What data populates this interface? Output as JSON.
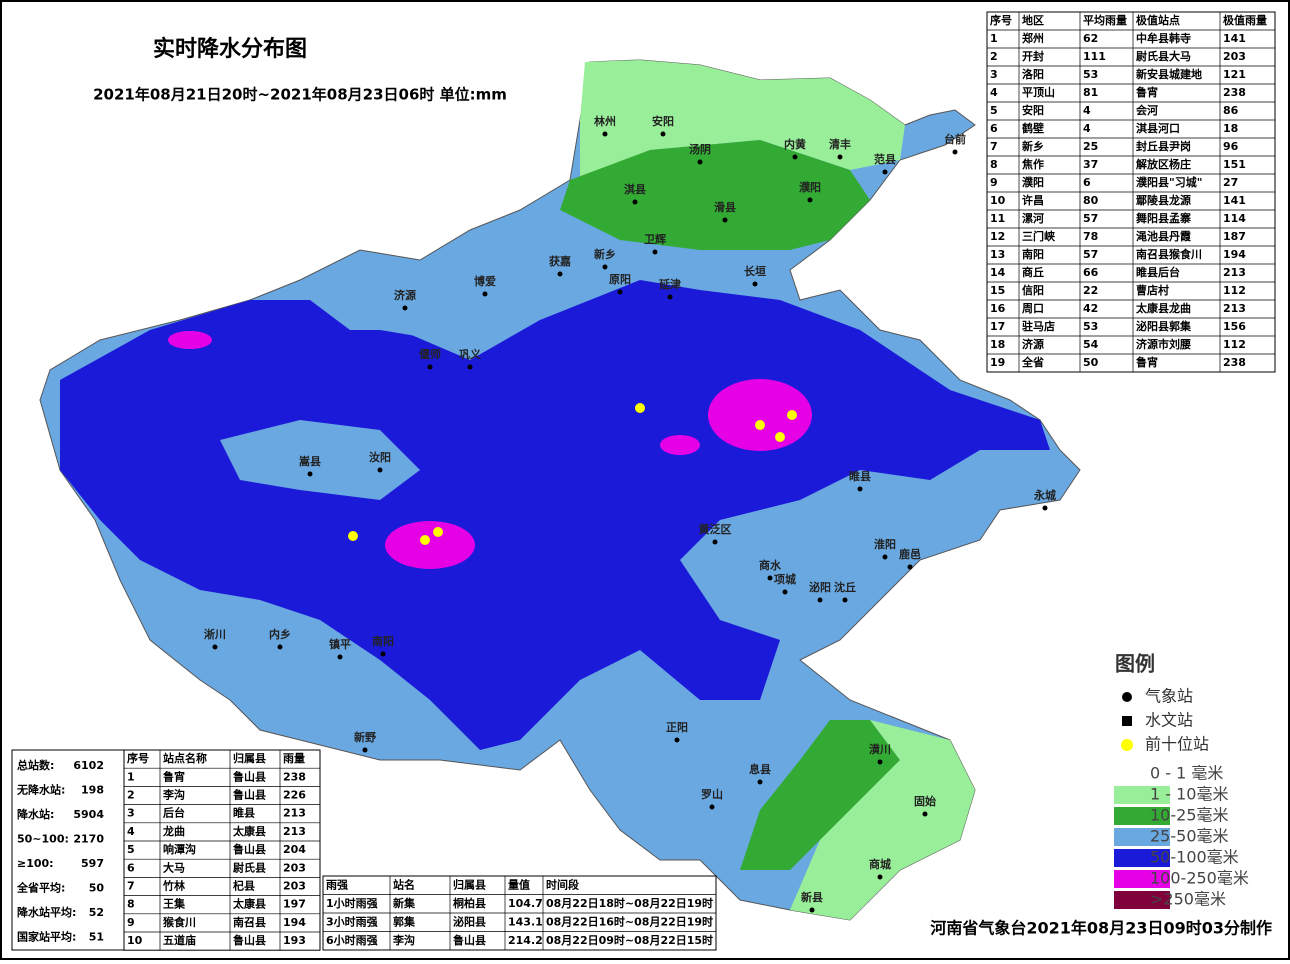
{
  "header": {
    "title": "实时降水分布图",
    "subtitle": "2021年08月21日20时~2021年08月23日06时 单位:mm"
  },
  "region_table": {
    "columns": [
      "序号",
      "地区",
      "平均雨量",
      "极值站点",
      "极值雨量"
    ],
    "rows": [
      [
        1,
        "郑州",
        62,
        "中牟县韩寺",
        141
      ],
      [
        2,
        "开封",
        111,
        "尉氏县大马",
        203
      ],
      [
        3,
        "洛阳",
        53,
        "新安县城建地",
        121
      ],
      [
        4,
        "平顶山",
        81,
        "鲁宵",
        238
      ],
      [
        5,
        "安阳",
        4,
        "会河",
        86
      ],
      [
        6,
        "鹤壁",
        4,
        "淇县河口",
        18
      ],
      [
        7,
        "新乡",
        25,
        "封丘县尹岗",
        96
      ],
      [
        8,
        "焦作",
        37,
        "解放区杨庄",
        151
      ],
      [
        9,
        "濮阳",
        6,
        "濮阳县\"习城\"",
        27
      ],
      [
        10,
        "许昌",
        80,
        "鄢陵县龙源",
        141
      ],
      [
        11,
        "漯河",
        57,
        "舞阳县孟寨",
        114
      ],
      [
        12,
        "三门峡",
        78,
        "渑池县丹霞",
        187
      ],
      [
        13,
        "南阳",
        57,
        "南召县猴食川",
        194
      ],
      [
        14,
        "商丘",
        66,
        "睢县后台",
        213
      ],
      [
        15,
        "信阳",
        22,
        "曹店村",
        112
      ],
      [
        16,
        "周口",
        42,
        "太康县龙曲",
        213
      ],
      [
        17,
        "驻马店",
        53,
        "泌阳县郭集",
        156
      ],
      [
        18,
        "济源",
        54,
        "济源市刘腰",
        112
      ],
      [
        19,
        "全省",
        50,
        "鲁宵",
        238
      ]
    ]
  },
  "stats": [
    {
      "label": "总站数:",
      "value": 6102
    },
    {
      "label": "无降水站:",
      "value": 198
    },
    {
      "label": "降水站:",
      "value": 5904
    },
    {
      "label": "50~100:",
      "value": 2170
    },
    {
      "label": "≥100:",
      "value": 597
    },
    {
      "label": "全省平均:",
      "value": 50
    },
    {
      "label": "降水站平均:",
      "value": 52
    },
    {
      "label": "国家站平均:",
      "value": 51
    }
  ],
  "station_table": {
    "columns": [
      "序号",
      "站点名称",
      "归属县",
      "雨量"
    ],
    "rows": [
      [
        1,
        "鲁宵",
        "鲁山县",
        238
      ],
      [
        2,
        "李沟",
        "鲁山县",
        226
      ],
      [
        3,
        "后台",
        "睢县",
        213
      ],
      [
        4,
        "龙曲",
        "太康县",
        213
      ],
      [
        5,
        "响潭沟",
        "鲁山县",
        204
      ],
      [
        6,
        "大马",
        "尉氏县",
        203
      ],
      [
        7,
        "竹林",
        "杞县",
        203
      ],
      [
        8,
        "王集",
        "太康县",
        197
      ],
      [
        9,
        "猴食川",
        "南召县",
        194
      ],
      [
        10,
        "五道庙",
        "鲁山县",
        193
      ]
    ]
  },
  "intensity_table": {
    "columns": [
      "雨强",
      "站名",
      "归属县",
      "量值",
      "时间段"
    ],
    "rows": [
      [
        "1小时雨强",
        "新集",
        "桐柏县",
        104.7,
        "08月22日18时~08月22日19时"
      ],
      [
        "3小时雨强",
        "郭集",
        "泌阳县",
        143.1,
        "08月22日16时~08月22日19时"
      ],
      [
        "6小时雨强",
        "李沟",
        "鲁山县",
        214.2,
        "08月22日09时~08月22日15时"
      ]
    ]
  },
  "legend": {
    "title": "图例",
    "symbols": [
      "气象站",
      "水文站",
      "前十位站"
    ],
    "classes": [
      {
        "label": "0 - 1 毫米",
        "color": "#ffffff"
      },
      {
        "label": "1 - 10毫米",
        "color": "#99ee99"
      },
      {
        "label": "10-25毫米",
        "color": "#33aa33"
      },
      {
        "label": "25-50毫米",
        "color": "#6aa8e2"
      },
      {
        "label": "50-100毫米",
        "color": "#1a1ad8"
      },
      {
        "label": "100-250毫米",
        "color": "#e600e6"
      },
      {
        "label": ">250毫米",
        "color": "#80003c"
      }
    ]
  },
  "map_labels": [
    "林州",
    "安阳",
    "汤阴",
    "内黄",
    "清丰",
    "濮阳",
    "范县",
    "台前",
    "淇县",
    "滑县",
    "卫辉",
    "新乡",
    "获嘉",
    "长垣",
    "济源",
    "博爱",
    "原阳",
    "延津",
    "偃师",
    "巩义",
    "汝阳",
    "嵩县",
    "淅川",
    "内乡",
    "镇平",
    "南阳",
    "新野",
    "泌阳",
    "正阳",
    "息县",
    "罗山",
    "固始",
    "商城",
    "新县",
    "潢川",
    "淮阳",
    "商水",
    "项城",
    "沈丘",
    "鹿邑",
    "永城",
    "睢县",
    "黄泛区"
  ],
  "credit": "河南省气象台2021年08月23日09时03分制作"
}
